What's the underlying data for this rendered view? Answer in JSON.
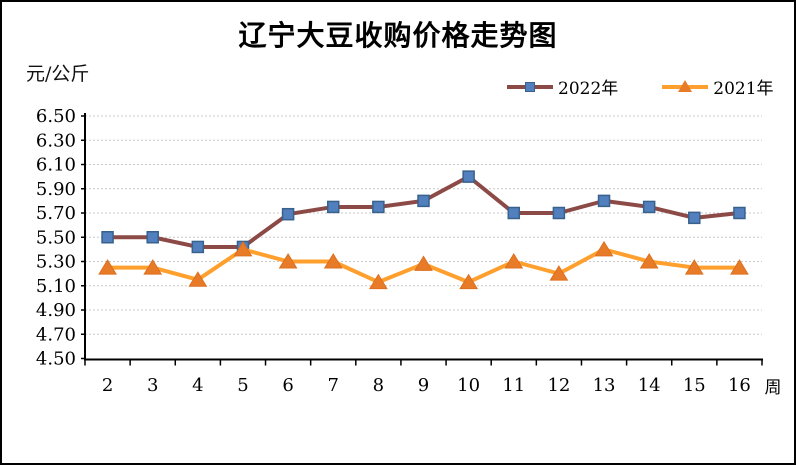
{
  "window": {
    "background": "#FFFFFF",
    "border_color": "#000000"
  },
  "chart_data": {
    "type": "line",
    "title": "辽宁大豆收购价格走势图",
    "unit_label": "元/公斤",
    "x_axis_suffix_label": "周",
    "categories": [
      "2",
      "3",
      "4",
      "5",
      "6",
      "7",
      "8",
      "9",
      "10",
      "11",
      "12",
      "13",
      "14",
      "15",
      "16"
    ],
    "series": [
      {
        "name": "2022年",
        "values": [
          5.5,
          5.5,
          5.42,
          5.42,
          5.69,
          5.75,
          5.75,
          5.8,
          6.0,
          5.7,
          5.7,
          5.8,
          5.75,
          5.66,
          5.7
        ],
        "line_color": "#8C4A47",
        "marker": "square",
        "marker_fill": "#527FBE",
        "marker_stroke": "#38618C"
      },
      {
        "name": "2021年",
        "values": [
          5.25,
          5.25,
          5.15,
          5.4,
          5.3,
          5.3,
          5.13,
          5.28,
          5.13,
          5.3,
          5.2,
          5.4,
          5.3,
          5.25,
          5.25
        ],
        "line_color": "#FFA02E",
        "marker": "triangle",
        "marker_fill": "#E87B28",
        "marker_stroke": "#DD6F1E"
      }
    ],
    "y_ticks": [
      "6.50",
      "6.30",
      "6.10",
      "5.90",
      "5.70",
      "5.50",
      "5.30",
      "5.10",
      "4.90",
      "4.70",
      "4.50"
    ],
    "ylim": [
      4.5,
      6.5
    ],
    "grid": "horizontal-dotted",
    "grid_color": "#C8C8C8",
    "axis_color": "#000000",
    "legend_position": "top-right"
  }
}
